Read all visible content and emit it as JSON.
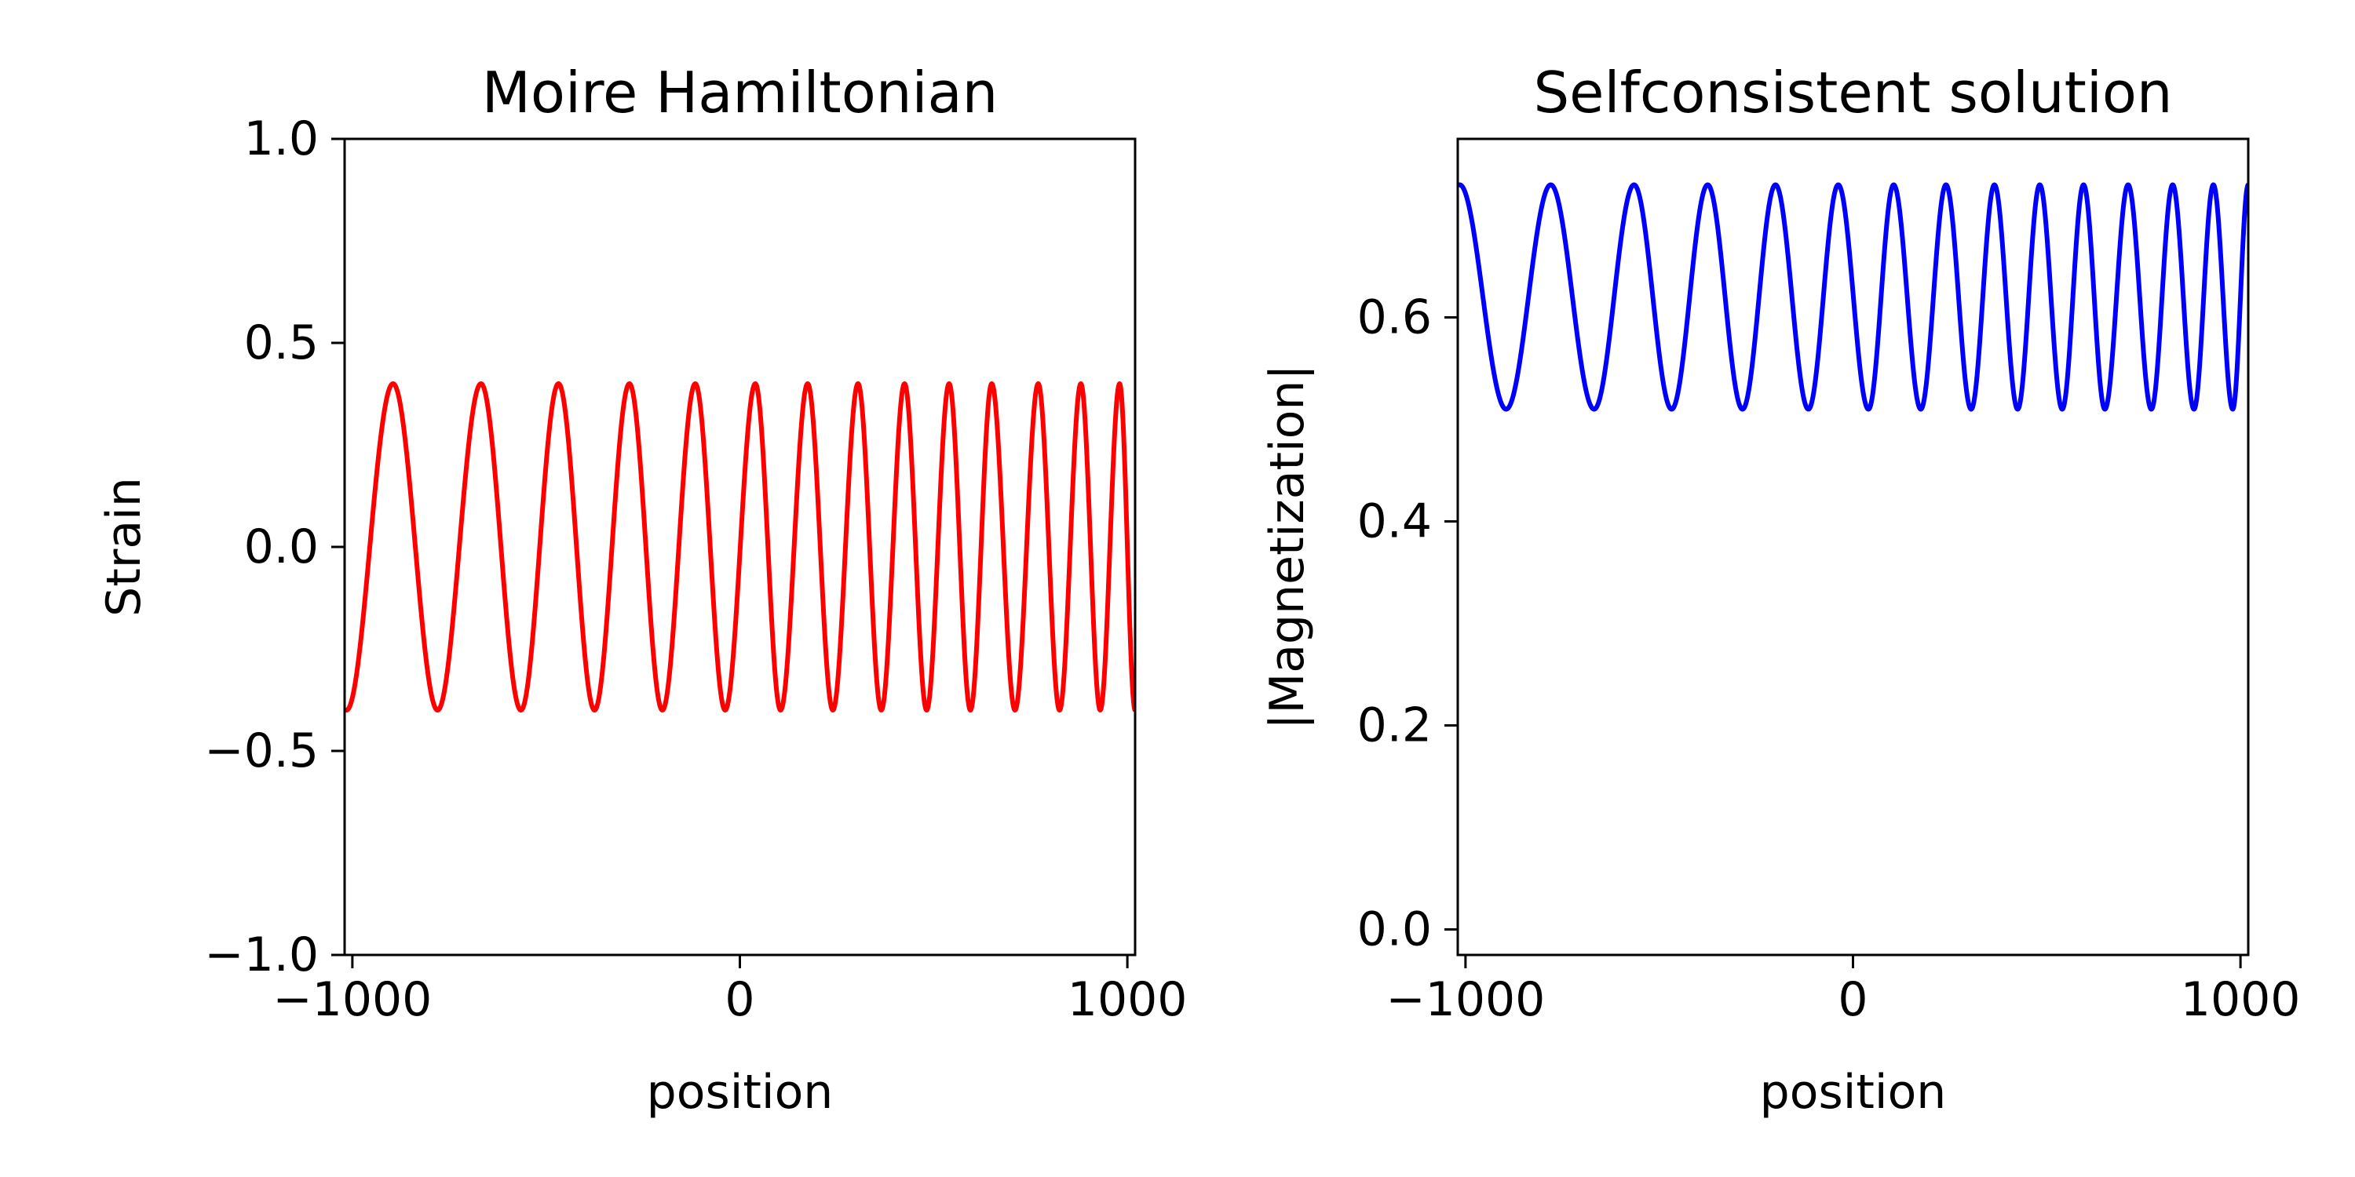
{
  "chart_data": [
    {
      "type": "line",
      "title": "Moire Hamiltonian",
      "xlabel": "position",
      "ylabel": "Strain",
      "xlim": [
        -1020,
        1020
      ],
      "ylim": [
        -1.0,
        1.0
      ],
      "xticks": [
        -1000,
        0,
        1000
      ],
      "xtick_labels": [
        "−1000",
        "0",
        "1000"
      ],
      "yticks": [
        -1.0,
        -0.5,
        0.0,
        0.5,
        1.0
      ],
      "ytick_labels": [
        "−1.0",
        "−0.5",
        "0.0",
        "0.5",
        "1.0"
      ],
      "grid": false,
      "series": [
        {
          "color": "#ff0000",
          "function": "0.4*cos(phase(x))",
          "amplitude": 0.4,
          "offset": 0.0,
          "x_range": [
            -1020,
            1020
          ],
          "peaks_x": [
            -895,
            -668,
            -468,
            -285,
            -115,
            40,
            175,
            305,
            425,
            540,
            650,
            770,
            880,
            980
          ],
          "troughs_x": [
            -1015,
            -780,
            -565,
            -375,
            -200,
            -38,
            105,
            240,
            365,
            482,
            595,
            710,
            825,
            930,
            1020
          ]
        }
      ]
    },
    {
      "type": "line",
      "title": "Selfconsistent solution",
      "xlabel": "position",
      "ylabel": "|Magnetization|",
      "xlim": [
        -1020,
        1020
      ],
      "ylim": [
        -0.025,
        0.775
      ],
      "xticks": [
        -1000,
        0,
        1000
      ],
      "xtick_labels": [
        "−1000",
        "0",
        "1000"
      ],
      "yticks": [
        0.0,
        0.2,
        0.4,
        0.6
      ],
      "ytick_labels": [
        "0.0",
        "0.2",
        "0.4",
        "0.6"
      ],
      "grid": false,
      "series": [
        {
          "color": "#0000ff",
          "function": "0.62+0.11*cos(phase(x))",
          "amplitude": 0.11,
          "offset": 0.62,
          "x_range": [
            -1020,
            1020
          ],
          "peaks_x": [
            -1015,
            -780,
            -565,
            -375,
            -200,
            -38,
            105,
            240,
            365,
            482,
            595,
            710,
            825,
            930,
            1020
          ],
          "troughs_x": [
            -895,
            -668,
            -468,
            -285,
            -115,
            40,
            175,
            305,
            425,
            540,
            650,
            770,
            880,
            980
          ]
        }
      ]
    }
  ]
}
